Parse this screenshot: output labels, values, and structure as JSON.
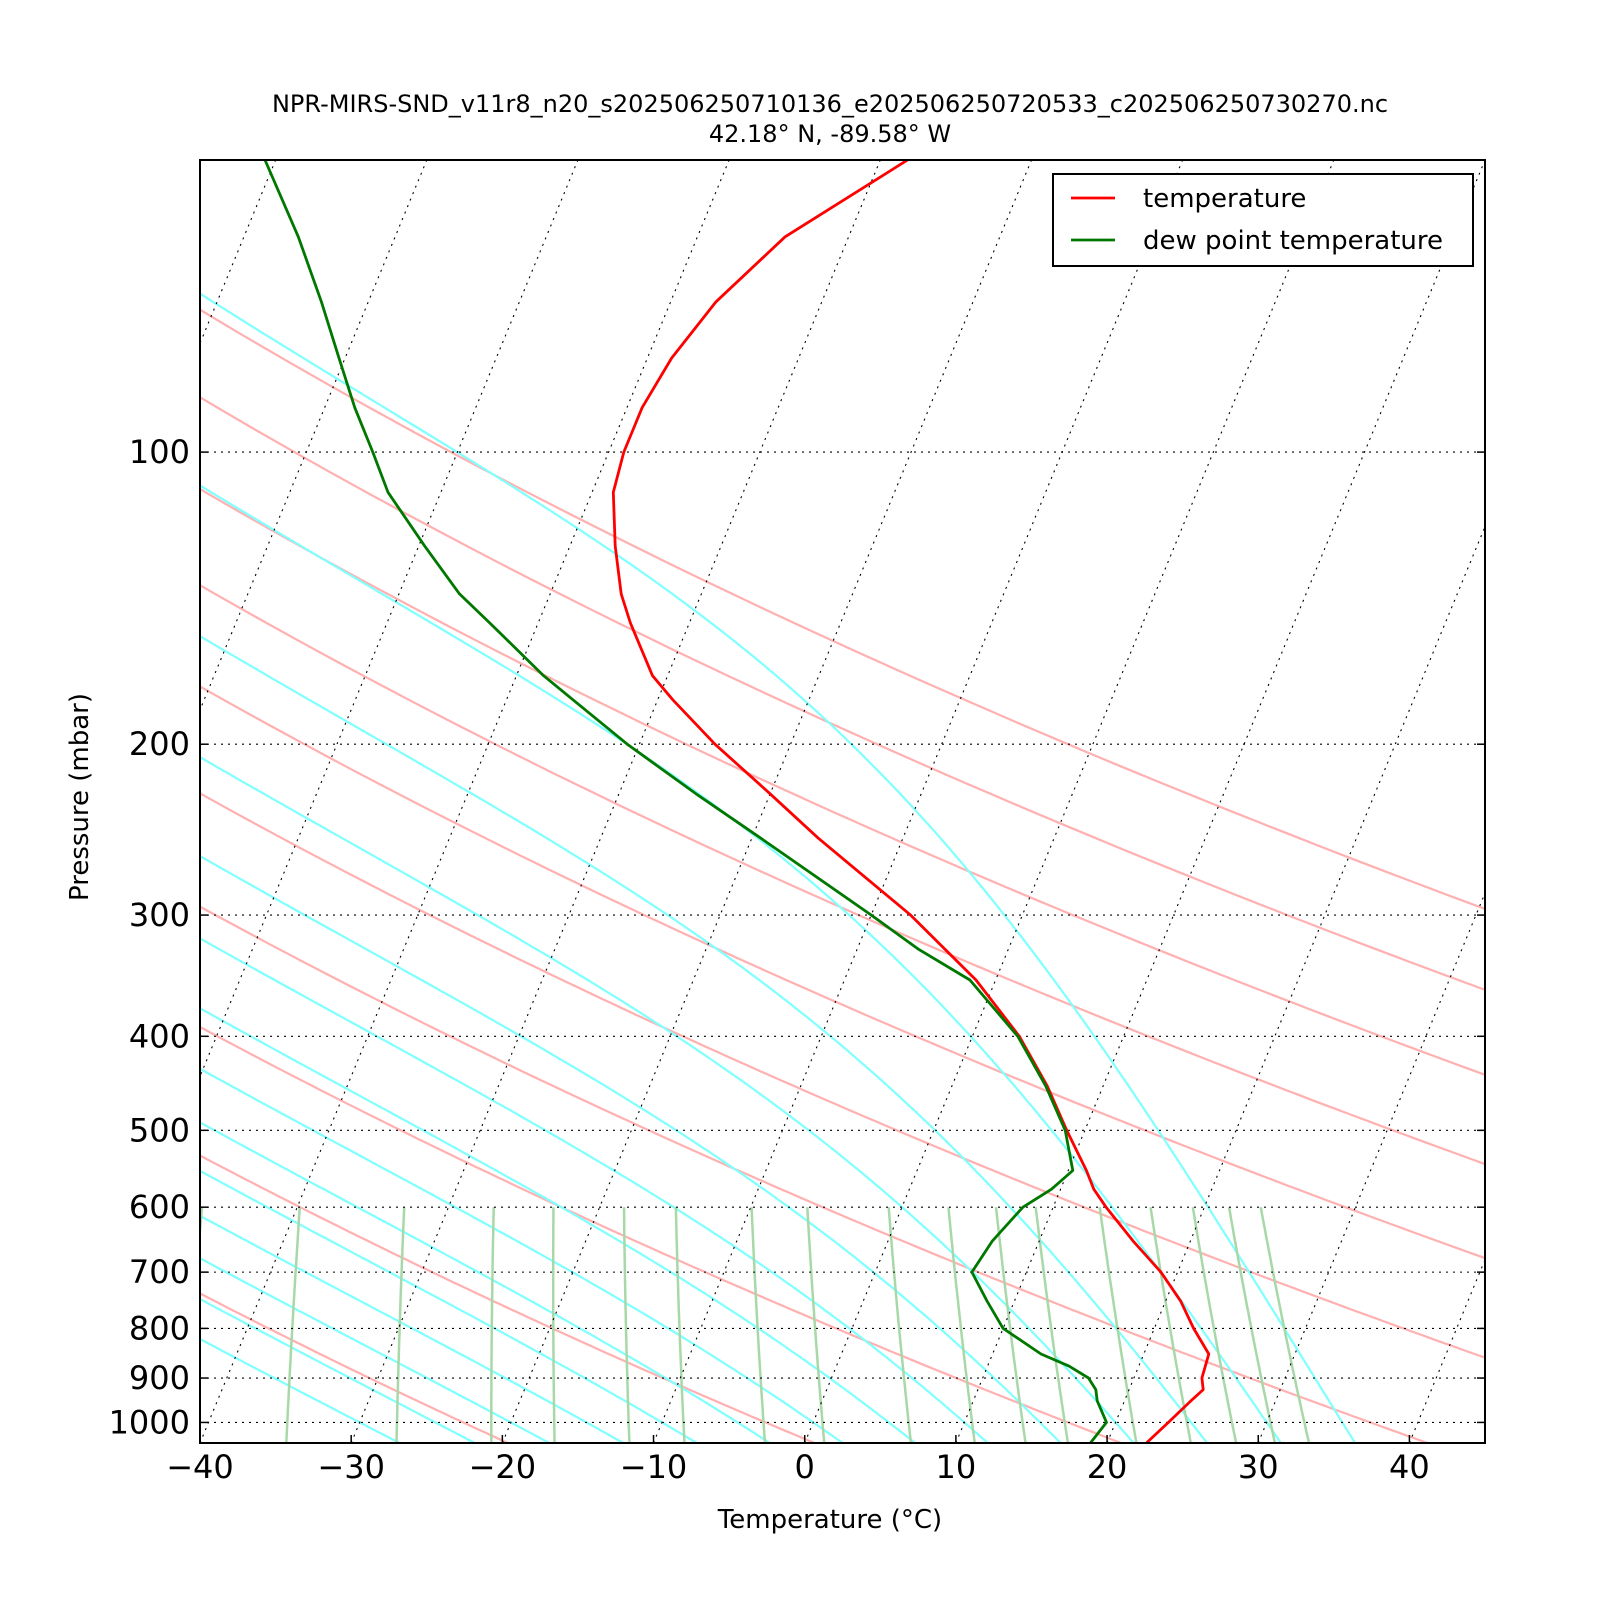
{
  "chart_data": {
    "type": "line",
    "subtype": "skew-t log-p diagram",
    "title": "NPR-MIRS-SND_v11r8_n20_s202506250710136_e202506250720533_c202506250730270.nc",
    "subtitle": "42.18° N, -89.58° W",
    "xlabel": "Temperature (°C)",
    "ylabel": "Pressure (mbar)",
    "xlim": [
      -40,
      45
    ],
    "ylim": [
      1050,
      50
    ],
    "yscale": "log",
    "grid": true,
    "legend_position": "top-right",
    "x_ticks": [
      {
        "value": -40,
        "label": "−40"
      },
      {
        "value": -30,
        "label": "−30"
      },
      {
        "value": -20,
        "label": "−20"
      },
      {
        "value": -10,
        "label": "−10"
      },
      {
        "value": 0,
        "label": "0"
      },
      {
        "value": 10,
        "label": "10"
      },
      {
        "value": 20,
        "label": "20"
      },
      {
        "value": 30,
        "label": "30"
      },
      {
        "value": 40,
        "label": "40"
      }
    ],
    "y_ticks": [
      {
        "value": 100,
        "label": "100"
      },
      {
        "value": 200,
        "label": "200"
      },
      {
        "value": 300,
        "label": "300"
      },
      {
        "value": 400,
        "label": "400"
      },
      {
        "value": 500,
        "label": "500"
      },
      {
        "value": 600,
        "label": "600"
      },
      {
        "value": 700,
        "label": "700"
      },
      {
        "value": 800,
        "label": "800"
      },
      {
        "value": 900,
        "label": "900"
      },
      {
        "value": 1000,
        "label": "1000"
      }
    ],
    "series": [
      {
        "name": "temperature",
        "color": "#ff0000",
        "pressure": [
          1050,
          1000,
          950,
          925,
          900,
          875,
          850,
          800,
          750,
          700,
          650,
          600,
          575,
          550,
          500,
          450,
          400,
          350,
          300,
          250,
          225,
          200,
          180,
          170,
          150,
          140,
          125,
          110,
          100,
          90,
          80,
          70,
          60,
          50
        ],
        "temperature": [
          22.6,
          23.5,
          24.4,
          24.9,
          24.5,
          24.4,
          24.3,
          22.6,
          21.0,
          18.9,
          16.2,
          13.5,
          12.2,
          11.2,
          8.8,
          6.3,
          3.1,
          -1.3,
          -7.4,
          -15.6,
          -20.0,
          -25.0,
          -29.0,
          -31.0,
          -33.9,
          -35.3,
          -37.0,
          -38.6,
          -39.0,
          -39.0,
          -38.4,
          -37.0,
          -34.2,
          -28.2
        ]
      },
      {
        "name": "dew point temperature",
        "color": "#007800",
        "pressure": [
          1050,
          1000,
          950,
          925,
          900,
          875,
          850,
          800,
          750,
          700,
          650,
          600,
          575,
          550,
          500,
          450,
          400,
          350,
          325,
          300,
          250,
          225,
          200,
          180,
          170,
          150,
          140,
          125,
          110,
          100,
          90,
          80,
          70,
          60,
          50
        ],
        "temperature": [
          18.9,
          19.4,
          18.2,
          17.8,
          17.0,
          15.4,
          13.2,
          10.0,
          8.2,
          6.4,
          6.9,
          8.0,
          9.4,
          10.3,
          8.7,
          6.2,
          3.0,
          -1.7,
          -6.0,
          -10.0,
          -19.4,
          -24.9,
          -30.8,
          -35.6,
          -38.2,
          -43.2,
          -46.0,
          -49.6,
          -53.5,
          -55.6,
          -58.0,
          -60.4,
          -63.1,
          -66.4,
          -70.7
        ]
      }
    ],
    "background_lines": {
      "skew": 35,
      "isotherm_color": "#000000",
      "dry_adiabat_color": "#ffb0b0",
      "dry_adiabat_theta_K": [
        230,
        250,
        270,
        290,
        310,
        330,
        350,
        370,
        390,
        410,
        430
      ],
      "moist_adiabat_color": "#80ffff",
      "moist_adiabat_start_C": [
        -30,
        -25,
        -20,
        -15,
        -10,
        -5,
        0,
        5,
        10,
        15,
        20,
        25,
        30,
        35
      ],
      "mixing_ratio_color": "#a8d8a8",
      "mixing_ratio_g_per_kg": [
        0.1,
        0.2,
        0.4,
        0.7,
        1.0,
        1.5,
        2.0,
        3.0,
        4.0,
        6.0,
        8.0,
        10.0,
        12.0,
        16.0,
        20.0,
        24.0,
        28.0,
        32.0
      ]
    }
  }
}
